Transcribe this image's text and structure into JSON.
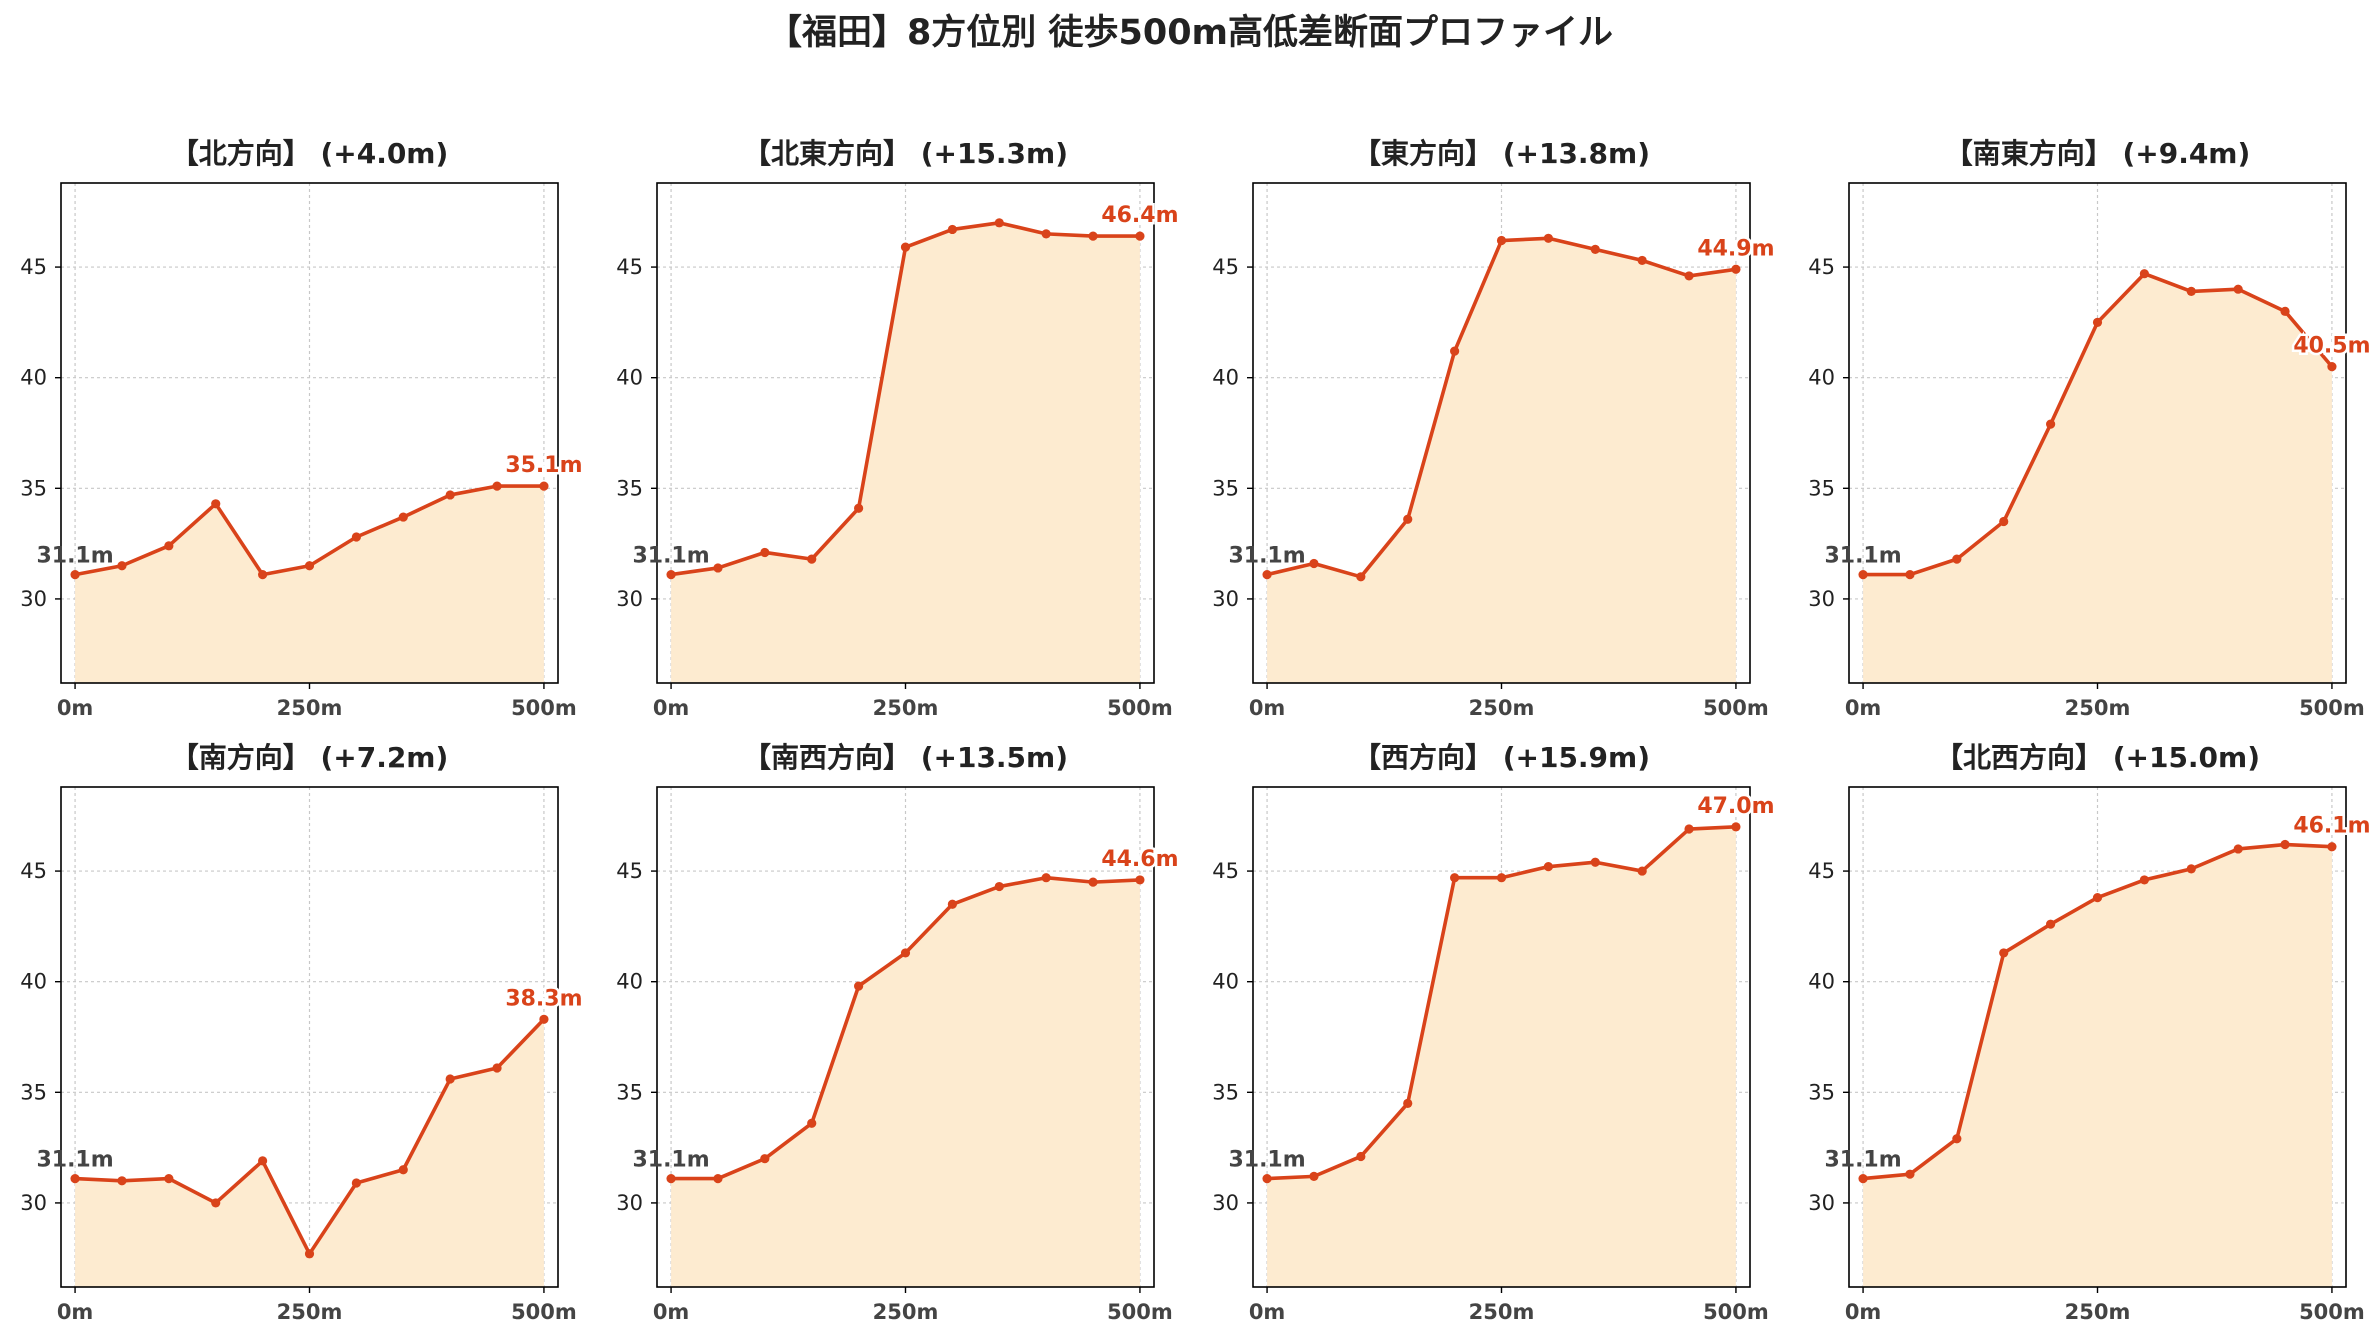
{
  "colors": {
    "line": "#d9431a",
    "fill": "#fdebd0",
    "end_label": "#d9431a",
    "start_label": "#444444"
  },
  "title": "【福田】8方位別 徒歩500m高低差断面プロファイル",
  "chart_data": [
    {
      "type": "area",
      "title": "【北方向】 (+4.0m)",
      "x": [
        0,
        50,
        100,
        150,
        200,
        250,
        300,
        350,
        400,
        450,
        500
      ],
      "xticks": [
        "0m",
        "250m",
        "500m"
      ],
      "yticks": [
        "30",
        "35",
        "40",
        "45"
      ],
      "ylim": [
        26.2,
        48.8
      ],
      "xlim": [
        -15,
        515
      ],
      "grid": true,
      "values": [
        31.1,
        31.5,
        32.4,
        34.3,
        31.1,
        31.5,
        32.8,
        33.7,
        34.7,
        35.1,
        35.1
      ],
      "start_label": "31.1m",
      "end_label": "35.1m"
    },
    {
      "type": "area",
      "title": "【北東方向】 (+15.3m)",
      "x": [
        0,
        50,
        100,
        150,
        200,
        250,
        300,
        350,
        400,
        450,
        500
      ],
      "xticks": [
        "0m",
        "250m",
        "500m"
      ],
      "yticks": [
        "30",
        "35",
        "40",
        "45"
      ],
      "ylim": [
        26.2,
        48.8
      ],
      "xlim": [
        -15,
        515
      ],
      "grid": true,
      "values": [
        31.1,
        31.4,
        32.1,
        31.8,
        34.1,
        45.9,
        46.7,
        47.0,
        46.5,
        46.4,
        46.4
      ],
      "start_label": "31.1m",
      "end_label": "46.4m"
    },
    {
      "type": "area",
      "title": "【東方向】 (+13.8m)",
      "x": [
        0,
        50,
        100,
        150,
        200,
        250,
        300,
        350,
        400,
        450,
        500
      ],
      "xticks": [
        "0m",
        "250m",
        "500m"
      ],
      "yticks": [
        "30",
        "35",
        "40",
        "45"
      ],
      "ylim": [
        26.2,
        48.8
      ],
      "xlim": [
        -15,
        515
      ],
      "grid": true,
      "values": [
        31.1,
        31.6,
        31.0,
        33.6,
        41.2,
        46.2,
        46.3,
        45.8,
        45.3,
        44.6,
        44.9
      ],
      "start_label": "31.1m",
      "end_label": "44.9m"
    },
    {
      "type": "area",
      "title": "【南東方向】 (+9.4m)",
      "x": [
        0,
        50,
        100,
        150,
        200,
        250,
        300,
        350,
        400,
        450,
        500
      ],
      "xticks": [
        "0m",
        "250m",
        "500m"
      ],
      "yticks": [
        "30",
        "35",
        "40",
        "45"
      ],
      "ylim": [
        26.2,
        48.8
      ],
      "xlim": [
        -15,
        515
      ],
      "grid": true,
      "values": [
        31.1,
        31.1,
        31.8,
        33.5,
        37.9,
        42.5,
        44.7,
        43.9,
        44.0,
        43.0,
        40.5
      ],
      "start_label": "31.1m",
      "end_label": "40.5m"
    },
    {
      "type": "area",
      "title": "【南方向】 (+7.2m)",
      "x": [
        0,
        50,
        100,
        150,
        200,
        250,
        300,
        350,
        400,
        450,
        500
      ],
      "xticks": [
        "0m",
        "250m",
        "500m"
      ],
      "yticks": [
        "30",
        "35",
        "40",
        "45"
      ],
      "ylim": [
        26.2,
        48.8
      ],
      "xlim": [
        -15,
        515
      ],
      "grid": true,
      "values": [
        31.1,
        31.0,
        31.1,
        30.0,
        31.9,
        27.7,
        30.9,
        31.5,
        35.6,
        36.1,
        38.3
      ],
      "start_label": "31.1m",
      "end_label": "38.3m"
    },
    {
      "type": "area",
      "title": "【南西方向】 (+13.5m)",
      "x": [
        0,
        50,
        100,
        150,
        200,
        250,
        300,
        350,
        400,
        450,
        500
      ],
      "xticks": [
        "0m",
        "250m",
        "500m"
      ],
      "yticks": [
        "30",
        "35",
        "40",
        "45"
      ],
      "ylim": [
        26.2,
        48.8
      ],
      "xlim": [
        -15,
        515
      ],
      "grid": true,
      "values": [
        31.1,
        31.1,
        32.0,
        33.6,
        39.8,
        41.3,
        43.5,
        44.3,
        44.7,
        44.5,
        44.6
      ],
      "start_label": "31.1m",
      "end_label": "44.6m"
    },
    {
      "type": "area",
      "title": "【西方向】 (+15.9m)",
      "x": [
        0,
        50,
        100,
        150,
        200,
        250,
        300,
        350,
        400,
        450,
        500
      ],
      "xticks": [
        "0m",
        "250m",
        "500m"
      ],
      "yticks": [
        "30",
        "35",
        "40",
        "45"
      ],
      "ylim": [
        26.2,
        48.8
      ],
      "xlim": [
        -15,
        515
      ],
      "grid": true,
      "values": [
        31.1,
        31.2,
        32.1,
        34.5,
        44.7,
        44.7,
        45.2,
        45.4,
        45.0,
        46.9,
        47.0
      ],
      "start_label": "31.1m",
      "end_label": "47.0m"
    },
    {
      "type": "area",
      "title": "【北西方向】 (+15.0m)",
      "x": [
        0,
        50,
        100,
        150,
        200,
        250,
        300,
        350,
        400,
        450,
        500
      ],
      "xticks": [
        "0m",
        "250m",
        "500m"
      ],
      "yticks": [
        "30",
        "35",
        "40",
        "45"
      ],
      "ylim": [
        26.2,
        48.8
      ],
      "xlim": [
        -15,
        515
      ],
      "grid": true,
      "values": [
        31.1,
        31.3,
        32.9,
        41.3,
        42.6,
        43.8,
        44.6,
        45.1,
        46.0,
        46.2,
        46.1
      ],
      "start_label": "31.1m",
      "end_label": "46.1m"
    }
  ]
}
